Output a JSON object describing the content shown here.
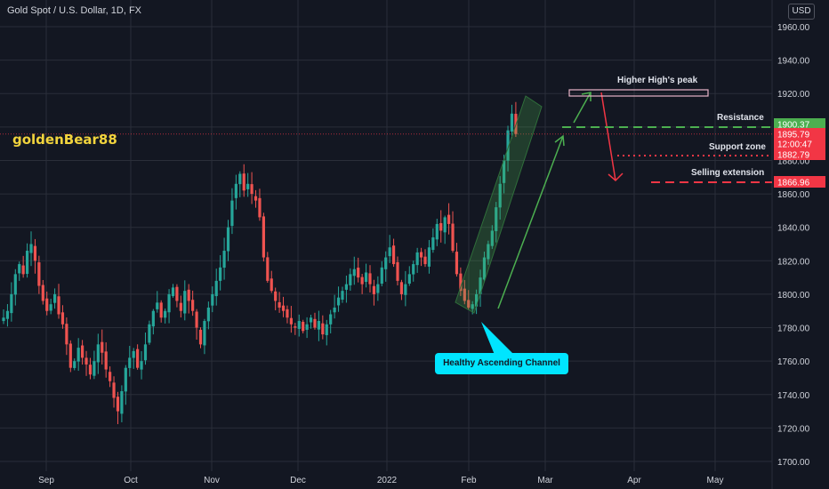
{
  "title": "Gold Spot / U.S. Dollar, 1D, FX",
  "watermark": "goldenBear88",
  "currency": "USD",
  "annotations": {
    "higher_high": "Higher High's peak",
    "resistance": "Resistance",
    "support": "Support zone",
    "selling": "Selling extension",
    "channel": "Healthy Ascending Channel"
  },
  "price_tags": [
    {
      "label": "1900.37",
      "value": 1900.37,
      "color": "#4caf50"
    },
    {
      "label": "1895.79",
      "value": 1895.79,
      "color": "#f23645"
    },
    {
      "label": "12:00:47",
      "value": 1893.2,
      "color": "#f23645"
    },
    {
      "label": "1882.79",
      "value": 1882.79,
      "color": "#f23645"
    },
    {
      "label": "1866.96",
      "value": 1866.96,
      "color": "#f23645"
    }
  ],
  "colors": {
    "up": "#26a69a",
    "down": "#ef5350",
    "background": "#131722",
    "grid": "#2a2e39"
  },
  "chart_data": {
    "type": "candlestick",
    "y_axis": {
      "ylim": [
        1695,
        1970
      ],
      "ticks": [
        "1700.00",
        "1720.00",
        "1740.00",
        "1760.00",
        "1780.00",
        "1800.00",
        "1820.00",
        "1840.00",
        "1860.00",
        "1880.00",
        "1900.00",
        "1920.00",
        "1940.00",
        "1960.00"
      ]
    },
    "x_axis": {
      "labels": [
        "Sep",
        "Oct",
        "Nov",
        "Dec",
        "2022",
        "Feb",
        "Mar",
        "Apr",
        "May"
      ]
    },
    "close_path": [
      1786,
      1790,
      1800,
      1812,
      1818,
      1812,
      1826,
      1830,
      1820,
      1805,
      1796,
      1790,
      1794,
      1800,
      1788,
      1782,
      1770,
      1756,
      1760,
      1768,
      1762,
      1758,
      1752,
      1760,
      1770,
      1765,
      1755,
      1748,
      1738,
      1730,
      1742,
      1756,
      1762,
      1766,
      1756,
      1760,
      1770,
      1782,
      1790,
      1795,
      1786,
      1790,
      1800,
      1804,
      1796,
      1790,
      1802,
      1796,
      1790,
      1780,
      1770,
      1784,
      1792,
      1800,
      1808,
      1816,
      1826,
      1840,
      1856,
      1866,
      1872,
      1862,
      1866,
      1860,
      1856,
      1846,
      1822,
      1808,
      1802,
      1796,
      1792,
      1790,
      1786,
      1782,
      1780,
      1784,
      1778,
      1782,
      1786,
      1780,
      1784,
      1776,
      1782,
      1788,
      1792,
      1798,
      1802,
      1806,
      1812,
      1815,
      1810,
      1806,
      1813,
      1806,
      1800,
      1806,
      1816,
      1822,
      1828,
      1818,
      1808,
      1800,
      1806,
      1812,
      1818,
      1825,
      1822,
      1818,
      1828,
      1834,
      1842,
      1838,
      1846,
      1842,
      1826,
      1812,
      1802,
      1796,
      1792,
      1794,
      1800,
      1810,
      1822,
      1830,
      1838,
      1852,
      1866,
      1880,
      1898,
      1908,
      1895.79
    ]
  }
}
